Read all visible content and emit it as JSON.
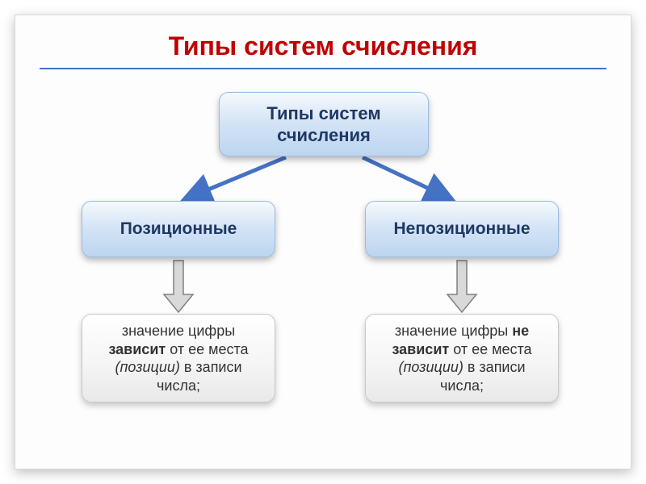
{
  "title": {
    "text": "Типы систем счисления",
    "color": "#c00000",
    "fontsize": 32
  },
  "hr_color": "#4472c4",
  "box_style": {
    "primary_gradient_top": "#f5f9fd",
    "primary_gradient_mid": "#d2e3f6",
    "primary_gradient_bot": "#bdd5f0",
    "primary_border": "#9dbce0",
    "primary_text_color": "#1f3864",
    "leaf_gradient_top": "#ffffff",
    "leaf_gradient_mid": "#f5f5f5",
    "leaf_gradient_bot": "#e9e9e9",
    "leaf_border": "#c8c8c8",
    "border_radius": 12
  },
  "arrows": {
    "diagonal_color": "#4472c4",
    "down_fill": "#d9d9d9",
    "down_stroke": "#808080"
  },
  "diagram": {
    "root": {
      "label": "Типы систем счисления"
    },
    "left": {
      "label": "Позиционные",
      "desc_plain": "значение цифры зависит от ее места (позиции) в записи числа;",
      "desc_html": "значение цифры <b>зависит</b> от ее места <i>(позиции)</i> в записи числа;"
    },
    "right": {
      "label": "Непозиционные",
      "desc_plain": "значение цифры не зависит от ее места (позиции) в записи числа;",
      "desc_html": "значение цифры <b>не зависит</b> от ее места <i>(позиции)</i> в записи числа;"
    }
  }
}
